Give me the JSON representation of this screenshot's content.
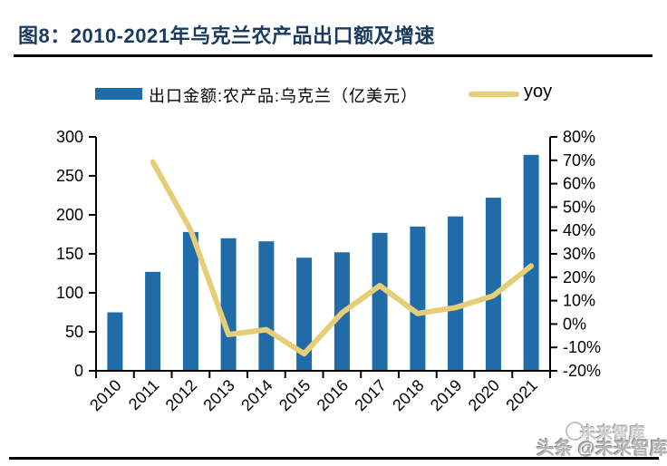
{
  "figure": {
    "title": "图8：2010-2021年乌克兰农产品出口额及增速"
  },
  "legend": {
    "bar_label": "出口金额:农产品:乌克兰（亿美元）",
    "line_label": "yoy"
  },
  "watermark": {
    "ghost": "未来智库",
    "main": "头条 @未来智库"
  },
  "colors": {
    "bar": "#1F6CA8",
    "line": "#E5CE77",
    "title_text": "#1C3A5E",
    "axis": "#000000"
  },
  "chart_data": {
    "type": "bar+line",
    "title": "2010-2021年乌克兰农产品出口额及增速",
    "categories": [
      "2010",
      "2011",
      "2012",
      "2013",
      "2014",
      "2015",
      "2016",
      "2017",
      "2018",
      "2019",
      "2020",
      "2021"
    ],
    "series": [
      {
        "name": "出口金额:农产品:乌克兰（亿美元）",
        "type": "bar",
        "axis": "left",
        "values": [
          75,
          127,
          178,
          170,
          166,
          145,
          152,
          177,
          185,
          198,
          222,
          277
        ]
      },
      {
        "name": "yoy",
        "type": "line",
        "axis": "right",
        "values": [
          null,
          69.3,
          40.2,
          -4.5,
          -2.4,
          -12.7,
          4.8,
          16.4,
          4.5,
          7.0,
          12.1,
          24.8
        ]
      }
    ],
    "left_axis": {
      "min": 0,
      "max": 300,
      "ticks": [
        0,
        50,
        100,
        150,
        200,
        250,
        300
      ],
      "suffix": ""
    },
    "right_axis": {
      "min": -20,
      "max": 80,
      "ticks": [
        -20,
        -10,
        0,
        10,
        20,
        30,
        40,
        50,
        60,
        70,
        80
      ],
      "suffix": "%"
    },
    "legend_position": "top",
    "grid": false
  }
}
